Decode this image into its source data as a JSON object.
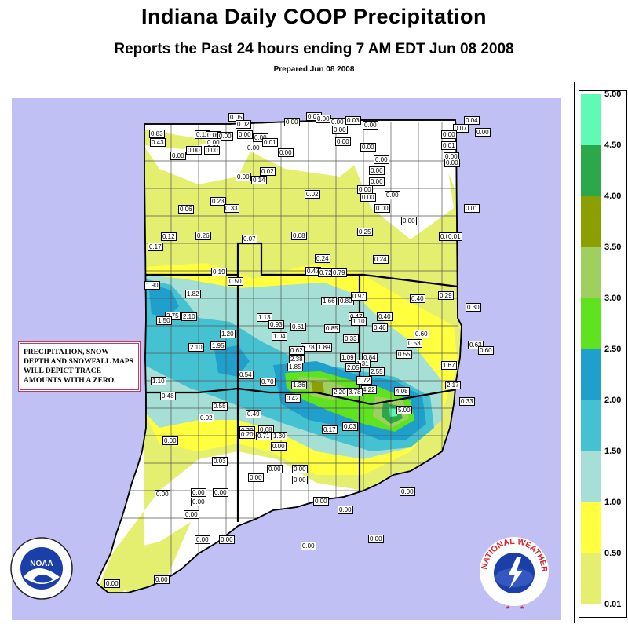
{
  "header": {
    "title": "Indiana Daily COOP Precipitation",
    "subtitle": "Reports the Past 24 hours ending 7 AM EDT Jun 08  2008",
    "prepared": "Prepared Jun 08 2008"
  },
  "notice": "PRECIPITATION, SNOW DEPTH AND SNOWFALL MAPS WILL DEPICT TRACE AMOUNTS WITH A ZERO.",
  "legend": {
    "labels": [
      "5.00",
      "4.50",
      "4.00",
      "3.50",
      "3.00",
      "2.50",
      "2.00",
      "1.50",
      "1.00",
      "0.50",
      "0.01"
    ],
    "colors": [
      "#5ffbb5",
      "#2aa84a",
      "#8c9f00",
      "#9fcf5f",
      "#5fe31f",
      "#1f9fcc",
      "#45c2d2",
      "#a5dfd5",
      "#ffff40",
      "#e4ef70"
    ]
  },
  "logos": {
    "noaa_label": "NOAA",
    "nws_text": "NATIONAL WEATHER SERVICE"
  },
  "stations": [
    "0.05",
    "0.02",
    "0.00",
    "0.02",
    "0.00",
    "0.00",
    "0.03",
    "0.00",
    "0.07",
    "0.04",
    "0.00",
    "0.83",
    "0.11",
    "0.05",
    "0.00",
    "0.00",
    "0.00",
    "0.43",
    "0.00",
    "0.01",
    "0.01",
    "0.00",
    "0.00",
    "0.00",
    "0.00",
    "0.01",
    "0.00",
    "0.00",
    "0.00",
    "0.00",
    "0.00",
    "0.02",
    "0.00",
    "0.00",
    "0.00",
    "0.00",
    "0.14",
    "0.00",
    "0.00",
    "0.02",
    "0.00",
    "0.00",
    "0.00",
    "0.23",
    "0.00",
    "0.06",
    "0.33",
    "0.00",
    "0.01",
    "0.12",
    "0.26",
    "0.07",
    "0.08",
    "0.25",
    "0.00",
    "0.01",
    "0.17",
    "0.24",
    "0.24",
    "0.19",
    "0.47",
    "0.72",
    "0.79",
    "0.50",
    "1.90",
    "1.82",
    "1.66",
    "0.80",
    "0.97",
    "0.40",
    "0.29",
    "0.30",
    "2.75",
    "2.10",
    "0.47",
    "0.40",
    "1.50",
    "1.13",
    "0.93",
    "0.61",
    "0.85",
    "1.10",
    "0.46",
    "0.60",
    "1.20",
    "1.04",
    "0.33",
    "0.53",
    "2.10",
    "1.95",
    "0.78",
    "1.89",
    "1.09",
    "0.84",
    "0.55",
    "0.63",
    "0.60",
    "0.62",
    "2.38",
    "1.85",
    "1.31",
    "2.05",
    "1.67",
    "0.54",
    "2.55",
    "1.72",
    "1.10",
    "0.70",
    "1.36",
    "4.22",
    "2.17",
    "0.48",
    "0.42",
    "2.20",
    "3.78",
    "4.08",
    "0.55",
    "0.33",
    "5.00",
    "0.49",
    "0.02",
    "0.68",
    "0.29",
    "0.19",
    "0.20",
    "0.71",
    "1.30",
    "0.17",
    "0.03",
    "0.00",
    "0.00",
    "0.03",
    "0.00",
    "0.00",
    "0.00",
    "0.00",
    "0.00",
    "0.00",
    "0.00",
    "0.00",
    "0.00",
    "0.00",
    "0.00",
    "0.00",
    "0.00",
    "0.00",
    "0.00",
    "0.00",
    "0.00",
    "0.00",
    "0.00",
    "0.00"
  ]
}
